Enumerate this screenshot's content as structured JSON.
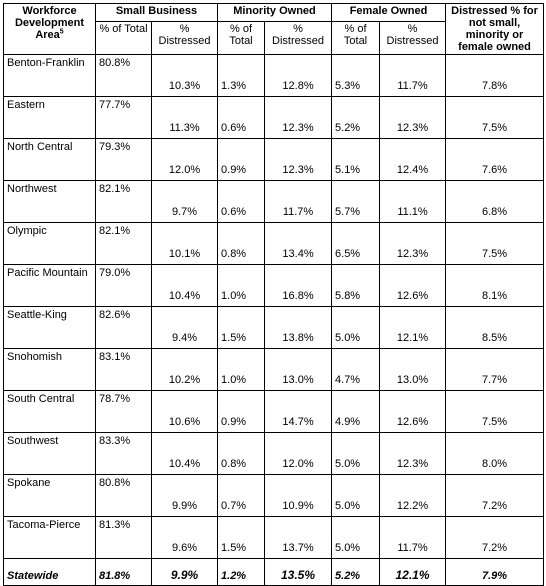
{
  "headers": {
    "area": "Workforce Development Area",
    "area_footnote": "5",
    "small_business": "Small Business",
    "minority_owned": "Minority Owned",
    "female_owned": "Female Owned",
    "distressed_other": "Distressed % for not small, minority or female owned",
    "pct_total": "% of Total",
    "pct_distressed": "% Distressed"
  },
  "rows": [
    {
      "area": "Benton-Franklin",
      "sb_total": "80.8%",
      "sb_dist": "10.3%",
      "mo_total": "1.3%",
      "mo_dist": "12.8%",
      "fo_total": "5.3%",
      "fo_dist": "11.7%",
      "other": "7.8%"
    },
    {
      "area": "Eastern",
      "sb_total": "77.7%",
      "sb_dist": "11.3%",
      "mo_total": "0.6%",
      "mo_dist": "12.3%",
      "fo_total": "5.2%",
      "fo_dist": "12.3%",
      "other": "7.5%"
    },
    {
      "area": "North Central",
      "sb_total": "79.3%",
      "sb_dist": "12.0%",
      "mo_total": "0.9%",
      "mo_dist": "12.3%",
      "fo_total": "5.1%",
      "fo_dist": "12.4%",
      "other": "7.6%"
    },
    {
      "area": "Northwest",
      "sb_total": "82.1%",
      "sb_dist": "9.7%",
      "mo_total": "0.6%",
      "mo_dist": "11.7%",
      "fo_total": "5.7%",
      "fo_dist": "11.1%",
      "other": "6.8%"
    },
    {
      "area": "Olympic",
      "sb_total": "82.1%",
      "sb_dist": "10.1%",
      "mo_total": "0.8%",
      "mo_dist": "13.4%",
      "fo_total": "6.5%",
      "fo_dist": "12.3%",
      "other": "7.5%"
    },
    {
      "area": "Pacific Mountain",
      "sb_total": "79.0%",
      "sb_dist": "10.4%",
      "mo_total": "1.0%",
      "mo_dist": "16.8%",
      "fo_total": "5.8%",
      "fo_dist": "12.6%",
      "other": "8.1%"
    },
    {
      "area": "Seattle-King",
      "sb_total": "82.6%",
      "sb_dist": "9.4%",
      "mo_total": "1.5%",
      "mo_dist": "13.8%",
      "fo_total": "5.0%",
      "fo_dist": "12.1%",
      "other": "8.5%"
    },
    {
      "area": "Snohomish",
      "sb_total": "83.1%",
      "sb_dist": "10.2%",
      "mo_total": "1.0%",
      "mo_dist": "13.0%",
      "fo_total": "4.7%",
      "fo_dist": "13.0%",
      "other": "7.7%"
    },
    {
      "area": "South Central",
      "sb_total": "78.7%",
      "sb_dist": "10.6%",
      "mo_total": "0.9%",
      "mo_dist": "14.7%",
      "fo_total": "4.9%",
      "fo_dist": "12.6%",
      "other": "7.5%"
    },
    {
      "area": "Southwest",
      "sb_total": "83.3%",
      "sb_dist": "10.4%",
      "mo_total": "0.8%",
      "mo_dist": "12.0%",
      "fo_total": "5.0%",
      "fo_dist": "12.3%",
      "other": "8.0%"
    },
    {
      "area": "Spokane",
      "sb_total": "80.8%",
      "sb_dist": "9.9%",
      "mo_total": "0.7%",
      "mo_dist": "10.9%",
      "fo_total": "5.0%",
      "fo_dist": "12.2%",
      "other": "7.2%"
    },
    {
      "area": "Tacoma-Pierce",
      "sb_total": "81.3%",
      "sb_dist": "9.6%",
      "mo_total": "1.5%",
      "mo_dist": "13.7%",
      "fo_total": "5.0%",
      "fo_dist": "11.7%",
      "other": "7.2%"
    }
  ],
  "statewide": {
    "area": "Statewide",
    "sb_total": "81.8%",
    "sb_dist": "9.9%",
    "mo_total": "1.2%",
    "mo_dist": "13.5%",
    "fo_total": "5.2%",
    "fo_dist": "12.1%",
    "other": "7.9%"
  }
}
